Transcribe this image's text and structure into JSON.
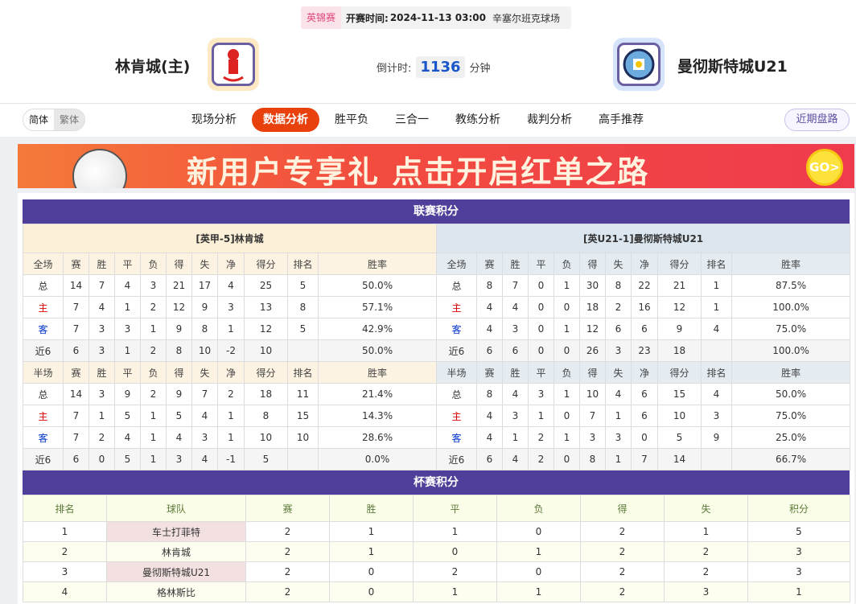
{
  "match": {
    "league": "英锦赛",
    "time_label": "开赛时间:",
    "time": "2024-11-13 03:00",
    "venue": "辛塞尔班克球场",
    "home": "林肯城(主)",
    "away": "曼彻斯特城U21",
    "countdown_label": "倒计时:",
    "countdown": "1136",
    "countdown_unit": "分钟"
  },
  "lang": [
    "简体",
    "繁体"
  ],
  "nav": [
    "现场分析",
    "数据分析",
    "胜平负",
    "三合一",
    "教练分析",
    "裁判分析",
    "高手推荐"
  ],
  "nav_active": 1,
  "recent_button": "近期盘路",
  "banner": {
    "text": "新用户专享礼 点击开启红单之路",
    "go": "GO>"
  },
  "league": {
    "title": "联赛积分",
    "left": {
      "team": "[英甲-5]林肯城",
      "full": {
        "header": [
          "全场",
          "赛",
          "胜",
          "平",
          "负",
          "得",
          "失",
          "净",
          "得分",
          "排名",
          "胜率"
        ],
        "rows": [
          [
            "总",
            "14",
            "7",
            "4",
            "3",
            "21",
            "17",
            "4",
            "25",
            "5",
            "50.0%"
          ],
          [
            "主",
            "7",
            "4",
            "1",
            "2",
            "12",
            "9",
            "3",
            "13",
            "8",
            "57.1%"
          ],
          [
            "客",
            "7",
            "3",
            "3",
            "1",
            "9",
            "8",
            "1",
            "12",
            "5",
            "42.9%"
          ],
          [
            "近6",
            "6",
            "3",
            "1",
            "2",
            "8",
            "10",
            "-2",
            "10",
            "",
            "50.0%"
          ]
        ]
      },
      "half": {
        "header": [
          "半场",
          "赛",
          "胜",
          "平",
          "负",
          "得",
          "失",
          "净",
          "得分",
          "排名",
          "胜率"
        ],
        "rows": [
          [
            "总",
            "14",
            "3",
            "9",
            "2",
            "9",
            "7",
            "2",
            "18",
            "11",
            "21.4%"
          ],
          [
            "主",
            "7",
            "1",
            "5",
            "1",
            "5",
            "4",
            "1",
            "8",
            "15",
            "14.3%"
          ],
          [
            "客",
            "7",
            "2",
            "4",
            "1",
            "4",
            "3",
            "1",
            "10",
            "10",
            "28.6%"
          ],
          [
            "近6",
            "6",
            "0",
            "5",
            "1",
            "3",
            "4",
            "-1",
            "5",
            "",
            "0.0%"
          ]
        ]
      }
    },
    "right": {
      "team": "[英U21-1]曼彻斯特城U21",
      "full": {
        "header": [
          "全场",
          "赛",
          "胜",
          "平",
          "负",
          "得",
          "失",
          "净",
          "得分",
          "排名",
          "胜率"
        ],
        "rows": [
          [
            "总",
            "8",
            "7",
            "0",
            "1",
            "30",
            "8",
            "22",
            "21",
            "1",
            "87.5%"
          ],
          [
            "主",
            "4",
            "4",
            "0",
            "0",
            "18",
            "2",
            "16",
            "12",
            "1",
            "100.0%"
          ],
          [
            "客",
            "4",
            "3",
            "0",
            "1",
            "12",
            "6",
            "6",
            "9",
            "4",
            "75.0%"
          ],
          [
            "近6",
            "6",
            "6",
            "0",
            "0",
            "26",
            "3",
            "23",
            "18",
            "",
            "100.0%"
          ]
        ]
      },
      "half": {
        "header": [
          "半场",
          "赛",
          "胜",
          "平",
          "负",
          "得",
          "失",
          "净",
          "得分",
          "排名",
          "胜率"
        ],
        "rows": [
          [
            "总",
            "8",
            "4",
            "3",
            "1",
            "10",
            "4",
            "6",
            "15",
            "4",
            "50.0%"
          ],
          [
            "主",
            "4",
            "3",
            "1",
            "0",
            "7",
            "1",
            "6",
            "10",
            "3",
            "75.0%"
          ],
          [
            "客",
            "4",
            "1",
            "2",
            "1",
            "3",
            "3",
            "0",
            "5",
            "9",
            "25.0%"
          ],
          [
            "近6",
            "6",
            "4",
            "2",
            "0",
            "8",
            "1",
            "7",
            "14",
            "",
            "66.7%"
          ]
        ]
      }
    }
  },
  "cup": {
    "title": "杯赛积分",
    "header": [
      "排名",
      "球队",
      "赛",
      "胜",
      "平",
      "负",
      "得",
      "失",
      "积分"
    ],
    "rows": [
      [
        "1",
        "车士打菲特",
        "2",
        "1",
        "1",
        "0",
        "2",
        "1",
        "5"
      ],
      [
        "2",
        "林肯城",
        "2",
        "1",
        "0",
        "1",
        "2",
        "2",
        "3"
      ],
      [
        "3",
        "曼彻斯特城U21",
        "2",
        "0",
        "2",
        "0",
        "2",
        "2",
        "3"
      ],
      [
        "4",
        "格林斯比",
        "2",
        "0",
        "1",
        "1",
        "2",
        "3",
        "1"
      ]
    ]
  },
  "colors": {
    "section": "#4f3f9b",
    "active_tab": "#e8410e",
    "home_label": "#dd0000",
    "away_label": "#0033cc",
    "countdown": "#1a56c9"
  }
}
